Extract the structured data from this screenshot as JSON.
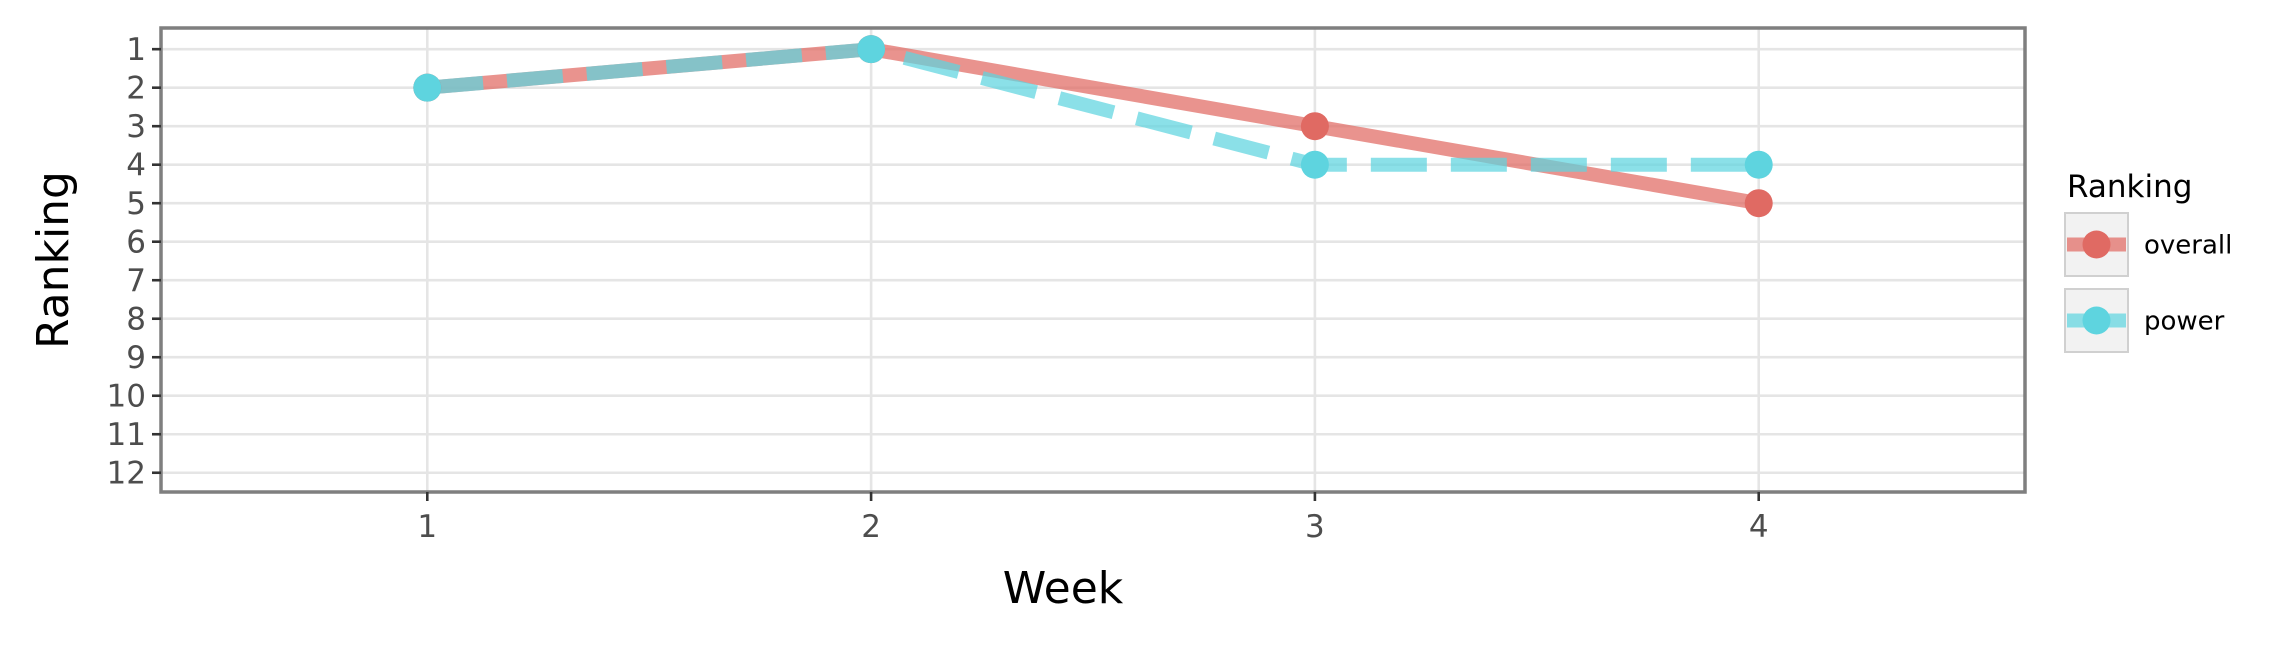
{
  "chart_data": {
    "type": "line",
    "title": "",
    "xlabel": "Week",
    "ylabel": "Ranking",
    "x": [
      1,
      2,
      3,
      4
    ],
    "x_ticks": [
      "1",
      "2",
      "3",
      "4"
    ],
    "xlim": [
      0.4,
      4.6
    ],
    "y_ticks": [
      "1",
      "2",
      "3",
      "4",
      "5",
      "6",
      "7",
      "8",
      "9",
      "10",
      "11",
      "12"
    ],
    "ylim": [
      12.5,
      0.45
    ],
    "y_axis_reversed": true,
    "grid": true,
    "series": [
      {
        "name": "overall",
        "values": [
          2,
          1,
          3,
          5
        ],
        "color": "#e06a63",
        "line_style": "solid"
      },
      {
        "name": "power",
        "values": [
          2,
          1,
          4,
          4
        ],
        "color": "#5ed4df",
        "line_style": "dashed"
      }
    ],
    "legend": {
      "title": "Ranking",
      "position": "right"
    }
  }
}
